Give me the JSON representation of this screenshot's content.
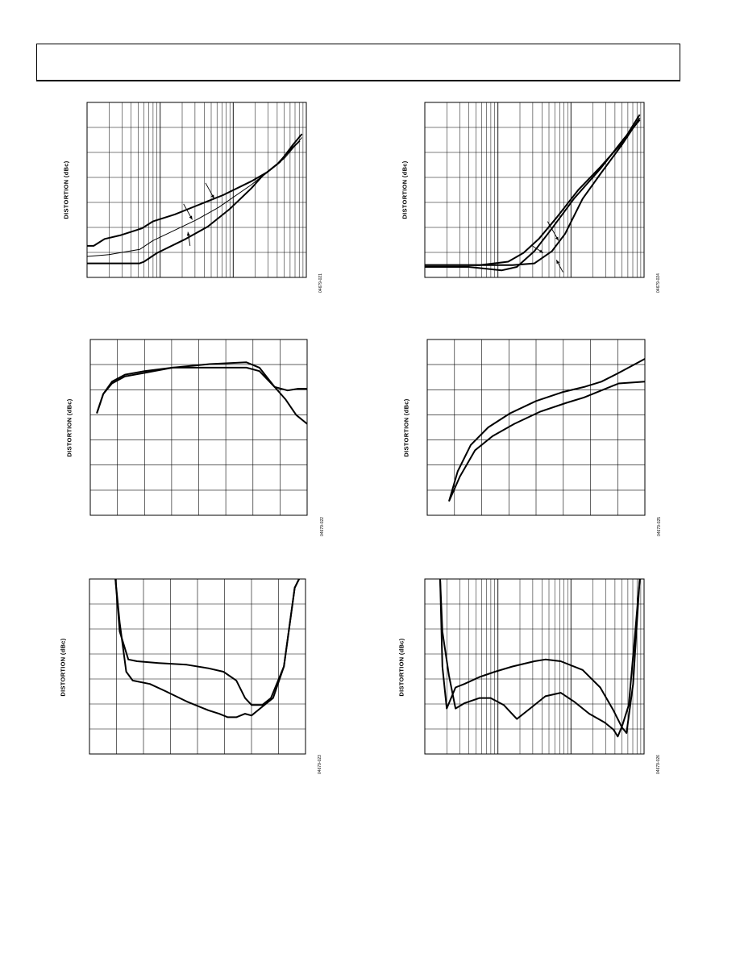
{
  "page": {
    "header": {}
  },
  "charts": [
    {
      "id": "c1",
      "ylabel": "DISTORTION (dBc)",
      "code": "04679-021",
      "xscale": "log",
      "curves": [
        {
          "name": "",
          "stroke": 2,
          "points": [
            [
              0,
              0.82
            ],
            [
              0.03,
              0.82
            ],
            [
              0.08,
              0.78
            ],
            [
              0.15,
              0.76
            ],
            [
              0.25,
              0.72
            ],
            [
              0.3,
              0.68
            ],
            [
              0.4,
              0.64
            ],
            [
              0.5,
              0.59
            ],
            [
              0.62,
              0.53
            ],
            [
              0.75,
              0.45
            ],
            [
              0.82,
              0.4
            ],
            [
              0.88,
              0.34
            ],
            [
              0.94,
              0.24
            ],
            [
              0.98,
              0.18
            ]
          ]
        },
        {
          "name": "",
          "stroke": 1,
          "points": [
            [
              0,
              0.88
            ],
            [
              0.1,
              0.87
            ],
            [
              0.24,
              0.84
            ],
            [
              0.3,
              0.79
            ],
            [
              0.4,
              0.73
            ],
            [
              0.5,
              0.67
            ],
            [
              0.6,
              0.6
            ],
            [
              0.75,
              0.47
            ],
            [
              0.82,
              0.4
            ],
            [
              0.86,
              0.36
            ],
            [
              0.9,
              0.32
            ],
            [
              0.94,
              0.26
            ],
            [
              0.98,
              0.2
            ]
          ]
        },
        {
          "name": "",
          "stroke": 2,
          "points": [
            [
              0,
              0.92
            ],
            [
              0.24,
              0.92
            ],
            [
              0.26,
              0.91
            ],
            [
              0.32,
              0.86
            ],
            [
              0.45,
              0.78
            ],
            [
              0.55,
              0.71
            ],
            [
              0.65,
              0.61
            ],
            [
              0.75,
              0.49
            ],
            [
              0.8,
              0.42
            ],
            [
              0.84,
              0.38
            ],
            [
              0.87,
              0.35
            ],
            [
              0.92,
              0.28
            ],
            [
              0.97,
              0.22
            ]
          ]
        }
      ],
      "arrows": [
        {
          "from": [
            0.54,
            0.46
          ],
          "to": [
            0.58,
            0.55
          ]
        },
        {
          "from": [
            0.44,
            0.58
          ],
          "to": [
            0.48,
            0.67
          ]
        },
        {
          "from": [
            0.47,
            0.82
          ],
          "to": [
            0.46,
            0.74
          ]
        }
      ]
    },
    {
      "id": "c2",
      "ylabel": "DISTORTION (dBc)",
      "code": "04679-024",
      "xscale": "log",
      "curves": [
        {
          "name": "",
          "stroke": 2,
          "points": [
            [
              0,
              0.93
            ],
            [
              0.25,
              0.93
            ],
            [
              0.38,
              0.91
            ],
            [
              0.45,
              0.86
            ],
            [
              0.52,
              0.78
            ],
            [
              0.6,
              0.66
            ],
            [
              0.7,
              0.5
            ],
            [
              0.8,
              0.37
            ],
            [
              0.9,
              0.23
            ],
            [
              0.98,
              0.07
            ]
          ]
        },
        {
          "name": "",
          "stroke": 2,
          "points": [
            [
              0,
              0.94
            ],
            [
              0.2,
              0.94
            ],
            [
              0.35,
              0.96
            ],
            [
              0.42,
              0.94
            ],
            [
              0.5,
              0.85
            ],
            [
              0.58,
              0.72
            ],
            [
              0.68,
              0.55
            ],
            [
              0.8,
              0.38
            ],
            [
              0.9,
              0.22
            ],
            [
              0.98,
              0.1
            ]
          ]
        },
        {
          "name": "",
          "stroke": 2,
          "points": [
            [
              0,
              0.93
            ],
            [
              0.3,
              0.93
            ],
            [
              0.4,
              0.93
            ],
            [
              0.5,
              0.92
            ],
            [
              0.58,
              0.85
            ],
            [
              0.64,
              0.75
            ],
            [
              0.72,
              0.55
            ],
            [
              0.8,
              0.41
            ],
            [
              0.9,
              0.24
            ],
            [
              0.98,
              0.09
            ]
          ]
        }
      ],
      "arrows": [
        {
          "from": [
            0.56,
            0.68
          ],
          "to": [
            0.61,
            0.79
          ]
        },
        {
          "from": [
            0.49,
            0.82
          ],
          "to": [
            0.54,
            0.86
          ]
        },
        {
          "from": [
            0.63,
            0.97
          ],
          "to": [
            0.6,
            0.9
          ]
        }
      ]
    },
    {
      "id": "c3",
      "ylabel": "DISTORTION (dBc)",
      "code": "04679-022",
      "xscale": "linear",
      "curves": [
        {
          "name": "",
          "stroke": 2,
          "points": [
            [
              0.03,
              0.42
            ],
            [
              0.06,
              0.31
            ],
            [
              0.1,
              0.24
            ],
            [
              0.16,
              0.2
            ],
            [
              0.25,
              0.18
            ],
            [
              0.38,
              0.16
            ],
            [
              0.55,
              0.16
            ],
            [
              0.72,
              0.16
            ],
            [
              0.78,
              0.18
            ],
            [
              0.85,
              0.27
            ],
            [
              0.91,
              0.29
            ],
            [
              0.96,
              0.28
            ],
            [
              1.0,
              0.28
            ]
          ]
        },
        {
          "name": "",
          "stroke": 2,
          "points": [
            [
              0.03,
              0.42
            ],
            [
              0.06,
              0.31
            ],
            [
              0.1,
              0.25
            ],
            [
              0.16,
              0.21
            ],
            [
              0.25,
              0.19
            ],
            [
              0.38,
              0.16
            ],
            [
              0.55,
              0.14
            ],
            [
              0.72,
              0.13
            ],
            [
              0.78,
              0.16
            ],
            [
              0.85,
              0.27
            ],
            [
              0.9,
              0.34
            ],
            [
              0.95,
              0.43
            ],
            [
              1.0,
              0.48
            ]
          ]
        }
      ],
      "arrows": []
    },
    {
      "id": "c4",
      "ylabel": "DISTORTION (dBc)",
      "code": "04679-025",
      "xscale": "linear",
      "curves": [
        {
          "name": "",
          "stroke": 2,
          "points": [
            [
              0.1,
              0.92
            ],
            [
              0.14,
              0.75
            ],
            [
              0.2,
              0.6
            ],
            [
              0.28,
              0.5
            ],
            [
              0.38,
              0.42
            ],
            [
              0.5,
              0.35
            ],
            [
              0.62,
              0.3
            ],
            [
              0.72,
              0.27
            ],
            [
              0.8,
              0.24
            ],
            [
              0.88,
              0.19
            ],
            [
              1.0,
              0.11
            ]
          ]
        },
        {
          "name": "",
          "stroke": 2,
          "points": [
            [
              0.1,
              0.92
            ],
            [
              0.15,
              0.78
            ],
            [
              0.22,
              0.63
            ],
            [
              0.3,
              0.55
            ],
            [
              0.4,
              0.48
            ],
            [
              0.52,
              0.41
            ],
            [
              0.64,
              0.36
            ],
            [
              0.72,
              0.33
            ],
            [
              0.8,
              0.29
            ],
            [
              0.88,
              0.25
            ],
            [
              1.0,
              0.24
            ]
          ]
        }
      ],
      "arrows": []
    },
    {
      "id": "c5",
      "ylabel": "DISTORTION (dBc)",
      "code": "04679-023",
      "xscale": "linear",
      "curves": [
        {
          "name": "",
          "stroke": 2,
          "points": [
            [
              0.12,
              0.0
            ],
            [
              0.14,
              0.3
            ],
            [
              0.18,
              0.46
            ],
            [
              0.22,
              0.47
            ],
            [
              0.32,
              0.48
            ],
            [
              0.45,
              0.49
            ],
            [
              0.55,
              0.51
            ],
            [
              0.62,
              0.53
            ],
            [
              0.68,
              0.58
            ],
            [
              0.72,
              0.68
            ],
            [
              0.75,
              0.72
            ],
            [
              0.8,
              0.72
            ],
            [
              0.84,
              0.68
            ],
            [
              0.9,
              0.5
            ],
            [
              0.95,
              0.05
            ],
            [
              0.97,
              0.0
            ]
          ]
        },
        {
          "name": "",
          "stroke": 2,
          "points": [
            [
              0.12,
              0.0
            ],
            [
              0.14,
              0.25
            ],
            [
              0.17,
              0.53
            ],
            [
              0.2,
              0.58
            ],
            [
              0.28,
              0.6
            ],
            [
              0.35,
              0.64
            ],
            [
              0.45,
              0.7
            ],
            [
              0.55,
              0.75
            ],
            [
              0.6,
              0.77
            ],
            [
              0.64,
              0.79
            ],
            [
              0.68,
              0.79
            ],
            [
              0.72,
              0.77
            ],
            [
              0.75,
              0.78
            ],
            [
              0.8,
              0.73
            ],
            [
              0.85,
              0.68
            ],
            [
              0.9,
              0.5
            ],
            [
              0.95,
              0.05
            ],
            [
              0.97,
              0.0
            ]
          ]
        }
      ],
      "arrows": []
    },
    {
      "id": "c6",
      "ylabel": "DISTORTION (dBc)",
      "code": "04679-026",
      "xscale": "log",
      "curves": [
        {
          "name": "",
          "stroke": 2,
          "points": [
            [
              0.07,
              0.0
            ],
            [
              0.08,
              0.5
            ],
            [
              0.1,
              0.74
            ],
            [
              0.14,
              0.62
            ],
            [
              0.18,
              0.6
            ],
            [
              0.25,
              0.56
            ],
            [
              0.32,
              0.53
            ],
            [
              0.4,
              0.5
            ],
            [
              0.5,
              0.47
            ],
            [
              0.55,
              0.46
            ],
            [
              0.62,
              0.47
            ],
            [
              0.72,
              0.52
            ],
            [
              0.8,
              0.62
            ],
            [
              0.86,
              0.75
            ],
            [
              0.9,
              0.85
            ],
            [
              0.92,
              0.88
            ],
            [
              0.95,
              0.6
            ],
            [
              0.97,
              0.2
            ],
            [
              0.98,
              0.0
            ]
          ]
        },
        {
          "name": "",
          "stroke": 2,
          "points": [
            [
              0.07,
              0.0
            ],
            [
              0.08,
              0.3
            ],
            [
              0.11,
              0.55
            ],
            [
              0.14,
              0.74
            ],
            [
              0.18,
              0.71
            ],
            [
              0.25,
              0.68
            ],
            [
              0.3,
              0.68
            ],
            [
              0.36,
              0.72
            ],
            [
              0.42,
              0.8
            ],
            [
              0.48,
              0.74
            ],
            [
              0.55,
              0.67
            ],
            [
              0.62,
              0.65
            ],
            [
              0.68,
              0.7
            ],
            [
              0.75,
              0.77
            ],
            [
              0.82,
              0.82
            ],
            [
              0.86,
              0.86
            ],
            [
              0.88,
              0.9
            ],
            [
              0.9,
              0.84
            ],
            [
              0.93,
              0.72
            ],
            [
              0.96,
              0.3
            ],
            [
              0.98,
              0.0
            ]
          ]
        }
      ],
      "arrows": []
    }
  ]
}
